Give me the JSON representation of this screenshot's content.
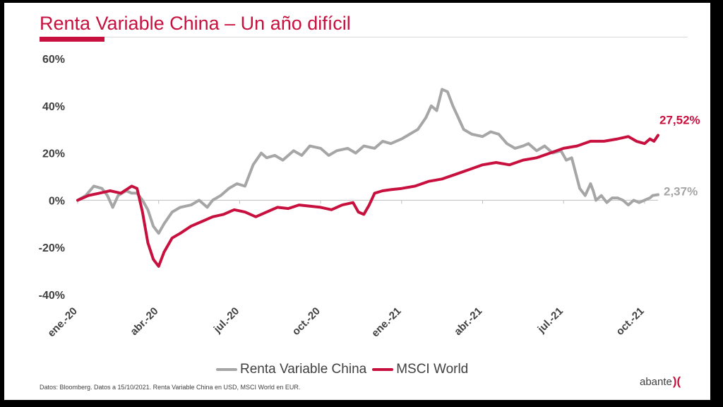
{
  "slide": {
    "title": "Renta Variable China – Un año difícil",
    "source": "Datos: Bloomberg. Datos a 15/10/2021. Renta Variable China en USD, MSCI World en EUR.",
    "logo_text": "abante",
    "logo_mark": ")("
  },
  "colors": {
    "accent": "#c8103e",
    "china": "#a6a6a6",
    "world": "#c8103e",
    "text": "#404040",
    "axis": "#bfbfbf"
  },
  "chart_data": {
    "type": "line",
    "title": "",
    "xlabel": "",
    "ylabel": "",
    "ylim": [
      -40,
      60
    ],
    "x_range": [
      0,
      21.5
    ],
    "yticks": [
      60,
      40,
      20,
      0,
      -20,
      -40
    ],
    "ytick_labels": [
      "60%",
      "40%",
      "20%",
      "0%",
      "-20%",
      "-40%"
    ],
    "xticks": [
      0,
      3,
      6,
      9,
      12,
      15,
      18,
      21
    ],
    "xtick_labels": [
      "ene.-20",
      "abr.-20",
      "jul.-20",
      "oct.-20",
      "ene.-21",
      "abr.-21",
      "jul.-21",
      "oct.-21"
    ],
    "legend_position": "bottom",
    "series": [
      {
        "name": "Renta Variable China",
        "color": "#a6a6a6",
        "end_label": "2,37%",
        "x": [
          0,
          0.3,
          0.6,
          0.9,
          1.1,
          1.3,
          1.5,
          1.8,
          2.0,
          2.2,
          2.4,
          2.6,
          2.8,
          3.0,
          3.2,
          3.5,
          3.8,
          4.2,
          4.5,
          4.8,
          5.0,
          5.3,
          5.6,
          5.9,
          6.2,
          6.5,
          6.8,
          7.0,
          7.3,
          7.6,
          8.0,
          8.3,
          8.6,
          9.0,
          9.3,
          9.6,
          10.0,
          10.3,
          10.6,
          11.0,
          11.3,
          11.6,
          12.0,
          12.3,
          12.6,
          12.9,
          13.1,
          13.3,
          13.5,
          13.7,
          13.9,
          14.1,
          14.3,
          14.6,
          15.0,
          15.3,
          15.6,
          15.9,
          16.2,
          16.5,
          16.7,
          17.0,
          17.3,
          17.6,
          17.9,
          18.1,
          18.3,
          18.6,
          18.8,
          19.0,
          19.1,
          19.2,
          19.4,
          19.6,
          19.8,
          20.0,
          20.2,
          20.4,
          20.6,
          20.8,
          21.0,
          21.2,
          21.3,
          21.5
        ],
        "values": [
          0,
          2,
          6,
          5,
          2,
          -3,
          2,
          4,
          3,
          3,
          0,
          -4,
          -11,
          -14,
          -10,
          -5,
          -3,
          -2,
          0,
          -3,
          0,
          2,
          5,
          7,
          6,
          15,
          20,
          18,
          19,
          17,
          21,
          19,
          23,
          22,
          19,
          21,
          22,
          20,
          23,
          22,
          25,
          24,
          26,
          28,
          30,
          35,
          40,
          38,
          47,
          46,
          40,
          35,
          30,
          28,
          27,
          29,
          28,
          24,
          22,
          23,
          24,
          21,
          23,
          20,
          21,
          17,
          18,
          5,
          2,
          7,
          4,
          0,
          2,
          -1,
          1,
          1,
          0,
          -2,
          0,
          -1,
          0,
          1,
          2,
          2.37
        ]
      },
      {
        "name": "MSCI World",
        "color": "#c8103e",
        "end_label": "27,52%",
        "x": [
          0,
          0.4,
          0.8,
          1.2,
          1.6,
          2.0,
          2.2,
          2.4,
          2.6,
          2.8,
          3.0,
          3.2,
          3.5,
          3.8,
          4.2,
          4.6,
          5.0,
          5.4,
          5.8,
          6.2,
          6.6,
          7.0,
          7.4,
          7.8,
          8.2,
          8.6,
          9.0,
          9.4,
          9.8,
          10.2,
          10.4,
          10.6,
          10.8,
          11.0,
          11.3,
          11.6,
          12.0,
          12.5,
          13.0,
          13.5,
          14.0,
          14.5,
          15.0,
          15.5,
          16.0,
          16.5,
          17.0,
          17.5,
          18.0,
          18.5,
          19.0,
          19.5,
          20.0,
          20.4,
          20.7,
          21.0,
          21.2,
          21.35,
          21.5
        ],
        "values": [
          0,
          2,
          3,
          4,
          3,
          6,
          5,
          -5,
          -18,
          -25,
          -28,
          -22,
          -16,
          -14,
          -11,
          -9,
          -7,
          -6,
          -4,
          -5,
          -7,
          -5,
          -3,
          -3.5,
          -2,
          -2.5,
          -3,
          -4,
          -2,
          -1,
          -5,
          -6,
          -2,
          3,
          4,
          4.5,
          5,
          6,
          8,
          9,
          11,
          13,
          15,
          16,
          15,
          17,
          18,
          20,
          22,
          23,
          25,
          25,
          26,
          27,
          25,
          24,
          26,
          25,
          27.52
        ]
      }
    ]
  }
}
